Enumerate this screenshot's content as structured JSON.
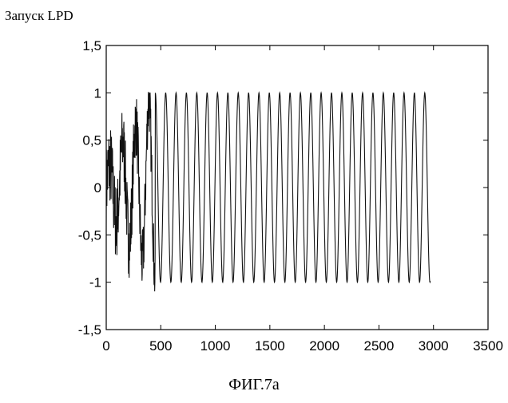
{
  "corner_label": "Запуск LPD",
  "figure_caption": "ФИГ.7a",
  "colors": {
    "axis": "#000000",
    "signal": "#111111"
  },
  "chart_data": {
    "type": "line",
    "title": "",
    "xlabel": "",
    "ylabel": "",
    "xlim": [
      0,
      3500
    ],
    "ylim": [
      -1.5,
      1.5
    ],
    "grid": false,
    "x_ticks": [
      "0",
      "500",
      "1000",
      "1500",
      "2000",
      "2500",
      "3000",
      "3500"
    ],
    "y_ticks": [
      "-1,5",
      "-1",
      "-0,5",
      "0",
      "0,5",
      "1",
      "1,5"
    ],
    "series": [
      {
        "description_free": true,
        "sample_count": 2970,
        "noisy_until": 450,
        "oscillation_period": 95,
        "amplitude": 1.0,
        "x": [
          0,
          2970
        ],
        "values": [
          0,
          -0.95
        ]
      }
    ]
  }
}
